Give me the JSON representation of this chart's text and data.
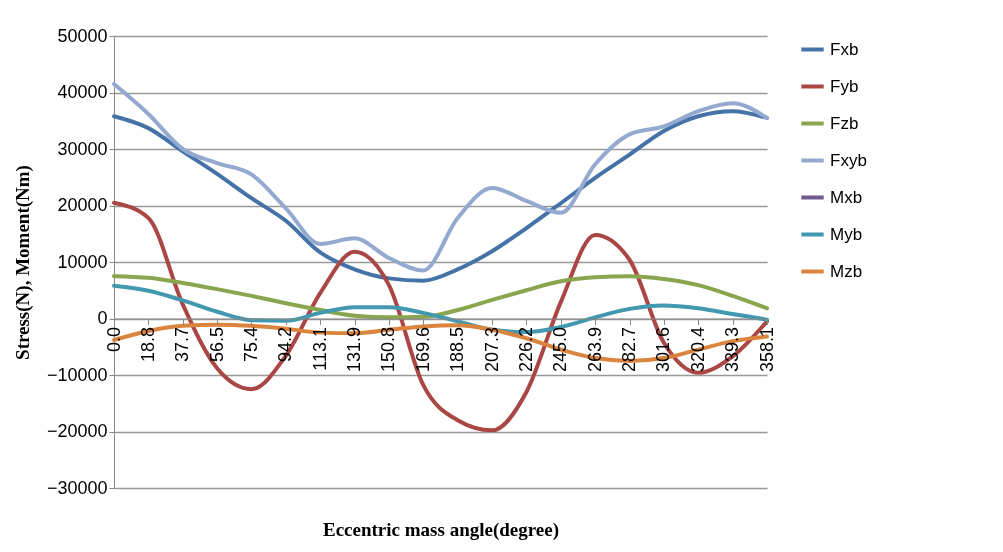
{
  "chart_data": {
    "type": "line",
    "xlabel": "Eccentric mass angle(degree)",
    "ylabel": "Stress(N), Moment(Nm)",
    "categories": [
      "0.0",
      "18.8",
      "37.7",
      "56.5",
      "75.4",
      "94.2",
      "113.1",
      "131.9",
      "150.8",
      "169.6",
      "188.5",
      "207.3",
      "226.2",
      "245.0",
      "263.9",
      "282.7",
      "301.6",
      "320.4",
      "339.3",
      "358.1"
    ],
    "series": [
      {
        "name": "Fxb",
        "color": "#4572a7",
        "values": [
          35800,
          33700,
          29600,
          25600,
          21300,
          17300,
          11700,
          8700,
          7100,
          6700,
          8700,
          11900,
          16000,
          20400,
          24900,
          29000,
          33200,
          35800,
          36700,
          35500
        ]
      },
      {
        "name": "Fyb",
        "color": "#aa4643",
        "values": [
          20500,
          17800,
          2500,
          -8800,
          -12500,
          -6600,
          4500,
          11800,
          5900,
          -11800,
          -18000,
          -19800,
          -13000,
          2900,
          14800,
          10400,
          -4300,
          -9600,
          -6700,
          -500
        ]
      },
      {
        "name": "Fzb",
        "color": "#89a54e",
        "values": [
          7500,
          7200,
          6300,
          5200,
          4000,
          2700,
          1500,
          500,
          200,
          300,
          1500,
          3300,
          5000,
          6600,
          7300,
          7500,
          7000,
          5900,
          4000,
          1800
        ]
      },
      {
        "name": "Fxyb",
        "color": "#93a9cf",
        "values": [
          41500,
          36200,
          30000,
          27500,
          25500,
          19500,
          13200,
          14200,
          10700,
          8500,
          17800,
          23100,
          20800,
          18700,
          27300,
          32600,
          34000,
          36700,
          38100,
          35500
        ]
      },
      {
        "name": "Mxb",
        "color": "#71588f",
        "values": [
          null,
          null,
          null,
          null,
          null,
          null,
          null,
          null,
          null,
          null,
          null,
          null,
          null,
          null,
          null,
          null,
          null,
          null,
          null,
          null
        ]
      },
      {
        "name": "Myb",
        "color": "#4198af",
        "values": [
          5800,
          4900,
          3200,
          1200,
          -300,
          -400,
          1000,
          2000,
          2000,
          1000,
          -500,
          -2000,
          -2400,
          -1500,
          200,
          1700,
          2300,
          1800,
          800,
          -200
        ]
      },
      {
        "name": "Mzb",
        "color": "#db843d",
        "values": [
          -3800,
          -2200,
          -1300,
          -1100,
          -1300,
          -1800,
          -2500,
          -2600,
          -2000,
          -1400,
          -1200,
          -2000,
          -3500,
          -5500,
          -7000,
          -7500,
          -7000,
          -5500,
          -4000,
          -3200
        ]
      }
    ],
    "ylim": [
      -30000,
      50000
    ],
    "yticks": [
      -30000,
      -20000,
      -10000,
      0,
      10000,
      20000,
      30000,
      40000,
      50000
    ],
    "grid": "y",
    "legend": "right",
    "marker": "none",
    "line_style": "solid"
  }
}
